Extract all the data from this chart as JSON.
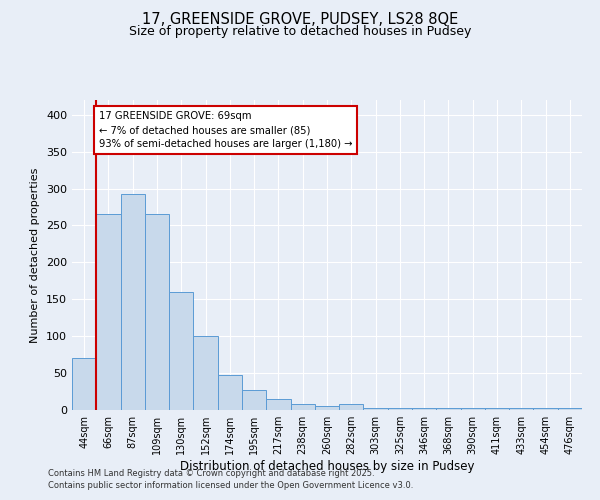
{
  "title1": "17, GREENSIDE GROVE, PUDSEY, LS28 8QE",
  "title2": "Size of property relative to detached houses in Pudsey",
  "xlabel": "Distribution of detached houses by size in Pudsey",
  "ylabel": "Number of detached properties",
  "categories": [
    "44sqm",
    "66sqm",
    "87sqm",
    "109sqm",
    "130sqm",
    "152sqm",
    "174sqm",
    "195sqm",
    "217sqm",
    "238sqm",
    "260sqm",
    "282sqm",
    "303sqm",
    "325sqm",
    "346sqm",
    "368sqm",
    "390sqm",
    "411sqm",
    "433sqm",
    "454sqm",
    "476sqm"
  ],
  "bar_values": [
    70,
    265,
    293,
    265,
    160,
    100,
    47,
    27,
    15,
    8,
    5,
    8,
    3,
    3,
    3,
    3,
    3,
    3,
    3,
    3,
    3
  ],
  "bar_color": "#c8d9eb",
  "bar_edge_color": "#5b9bd5",
  "highlight_line_color": "#cc0000",
  "annotation_title": "17 GREENSIDE GROVE: 69sqm",
  "annotation_line1": "← 7% of detached houses are smaller (85)",
  "annotation_line2": "93% of semi-detached houses are larger (1,180) →",
  "annotation_box_color": "#ffffff",
  "annotation_box_edge": "#cc0000",
  "ylim": [
    0,
    420
  ],
  "yticks": [
    0,
    50,
    100,
    150,
    200,
    250,
    300,
    350,
    400
  ],
  "background_color": "#e8eef7",
  "grid_color": "#ffffff",
  "footnote1": "Contains HM Land Registry data © Crown copyright and database right 2025.",
  "footnote2": "Contains public sector information licensed under the Open Government Licence v3.0."
}
